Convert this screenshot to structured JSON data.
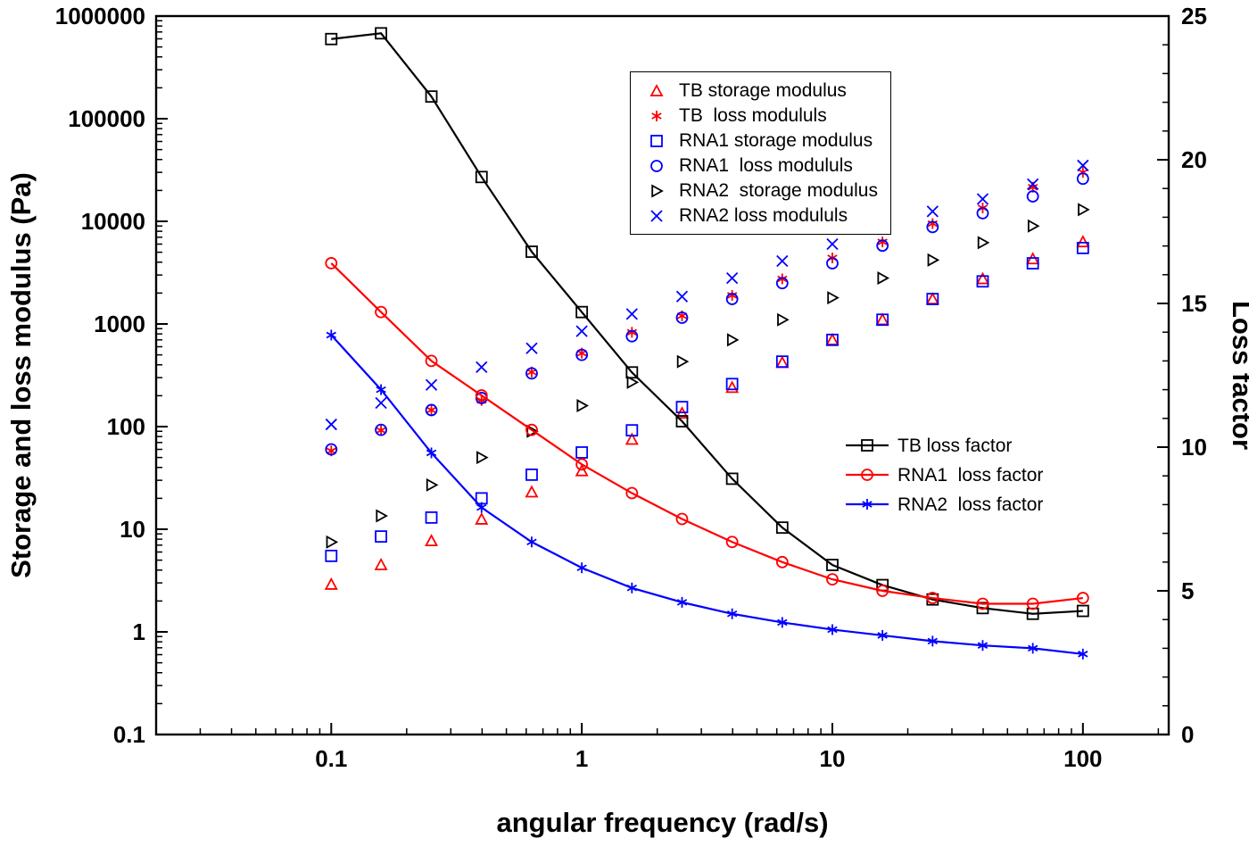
{
  "chart_data": {
    "type": "scatter",
    "title": "",
    "x": [
      0.1,
      0.158,
      0.251,
      0.398,
      0.631,
      1,
      1.585,
      2.512,
      3.981,
      6.31,
      10,
      15.85,
      25.12,
      39.81,
      63.1,
      100
    ],
    "series": [
      {
        "name": "TB storage modulus",
        "marker": "triangle-up",
        "color": "#ff0000",
        "axis": "left",
        "line": false,
        "values": [
          2.9,
          4.5,
          7.7,
          12.5,
          23,
          37,
          75,
          135,
          240,
          420,
          700,
          1100,
          1750,
          2750,
          4300,
          6300
        ]
      },
      {
        "name": "TB  loss modululs",
        "marker": "asterisk",
        "color": "#ff0000",
        "axis": "left",
        "line": false,
        "values": [
          58,
          92,
          145,
          180,
          340,
          520,
          830,
          1200,
          1900,
          2750,
          4400,
          6300,
          9500,
          13500,
          21500,
          30000
        ]
      },
      {
        "name": "RNA1 storage modulus",
        "marker": "square",
        "color": "#0000ff",
        "axis": "left",
        "line": false,
        "values": [
          5.5,
          8.5,
          13,
          20,
          34,
          56,
          92,
          155,
          260,
          430,
          700,
          1100,
          1750,
          2600,
          3900,
          5500
        ]
      },
      {
        "name": "RNA1  loss modululs",
        "marker": "circle",
        "color": "#0000ff",
        "axis": "left",
        "line": false,
        "values": [
          60,
          93,
          145,
          190,
          330,
          500,
          760,
          1150,
          1750,
          2500,
          3900,
          5800,
          8800,
          12000,
          17500,
          26000
        ]
      },
      {
        "name": "RNA2  storage modulus",
        "marker": "triangle-right",
        "color": "#000000",
        "axis": "left",
        "line": false,
        "values": [
          7.5,
          13.5,
          27,
          50,
          90,
          160,
          270,
          430,
          700,
          1100,
          1800,
          2800,
          4200,
          6200,
          9000,
          13000
        ]
      },
      {
        "name": "RNA2 loss modululs",
        "marker": "x",
        "color": "#0000ff",
        "axis": "left",
        "line": false,
        "values": [
          105,
          170,
          255,
          380,
          580,
          850,
          1250,
          1850,
          2800,
          4100,
          6000,
          8700,
          12500,
          16500,
          23000,
          35000
        ]
      },
      {
        "name": "TB loss factor",
        "marker": "square",
        "color": "#000000",
        "axis": "right",
        "line": true,
        "values": [
          24.2,
          24.4,
          22.2,
          19.4,
          16.8,
          14.7,
          12.6,
          10.9,
          8.9,
          7.2,
          5.9,
          5.2,
          4.7,
          4.4,
          4.2,
          4.3
        ]
      },
      {
        "name": "RNA1  loss factor",
        "marker": "circle",
        "color": "#ff0000",
        "axis": "right",
        "line": true,
        "values": [
          16.4,
          14.7,
          13.0,
          11.8,
          10.6,
          9.4,
          8.4,
          7.5,
          6.7,
          6.0,
          5.4,
          5.0,
          4.75,
          4.55,
          4.55,
          4.75
        ]
      },
      {
        "name": "RNA2  loss factor",
        "marker": "asterisk",
        "color": "#0000ff",
        "axis": "right",
        "line": true,
        "values": [
          13.9,
          12.0,
          9.8,
          7.9,
          6.7,
          5.8,
          5.1,
          4.6,
          4.2,
          3.9,
          3.65,
          3.45,
          3.25,
          3.1,
          3.0,
          2.8
        ]
      }
    ],
    "axes": {
      "x": {
        "label": "angular frequency (rad/s)",
        "scale": "log",
        "min": 0.02,
        "max": 220,
        "ticks": [
          0.1,
          1,
          10,
          100
        ],
        "tick_labels": [
          "0.1",
          "1",
          "10",
          "100"
        ]
      },
      "y_left": {
        "label": "Storage and loss modulus (Pa)",
        "scale": "log",
        "min": 0.1,
        "max": 1000000,
        "ticks": [
          0.1,
          1,
          10,
          100,
          1000,
          10000,
          100000,
          1000000
        ],
        "tick_labels": [
          "0.1",
          "1",
          "10",
          "100",
          "1000",
          "10000",
          "100000",
          "1000000"
        ]
      },
      "y_right": {
        "label": "Loss factor",
        "scale": "linear",
        "min": 0,
        "max": 25,
        "ticks": [
          0,
          5,
          10,
          15,
          20,
          25
        ],
        "tick_labels": [
          "0",
          "5",
          "10",
          "15",
          "20",
          "25"
        ]
      }
    },
    "grid": false,
    "legend_position": {
      "scatter_legend": "top-center boxed",
      "line_legend": "right-middle unboxed"
    }
  },
  "legend1": {
    "items": [
      {
        "label": "TB storage modulus",
        "series": 0
      },
      {
        "label": "TB  loss modululs",
        "series": 1
      },
      {
        "label": "RNA1 storage modulus",
        "series": 2
      },
      {
        "label": "RNA1  loss modululs",
        "series": 3
      },
      {
        "label": "RNA2  storage modulus",
        "series": 4
      },
      {
        "label": "RNA2 loss modululs",
        "series": 5
      }
    ]
  },
  "legend2": {
    "items": [
      {
        "label": "TB loss factor",
        "series": 6
      },
      {
        "label": "RNA1  loss factor",
        "series": 7
      },
      {
        "label": "RNA2  loss factor",
        "series": 8
      }
    ]
  }
}
